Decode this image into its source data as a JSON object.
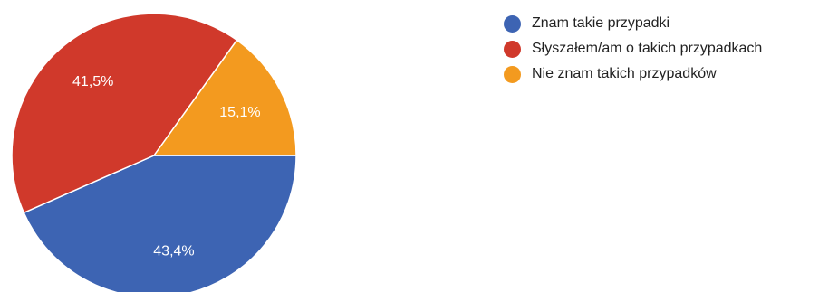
{
  "chart_data": {
    "type": "pie",
    "categories": [
      "Znam takie przypadki",
      "Słyszałem/am o takich przypadkach",
      "Nie znam takich przypadków"
    ],
    "values": [
      43.4,
      41.5,
      15.1
    ],
    "data_labels": [
      "43,4%",
      "41,5%",
      "15,1%"
    ],
    "colors": [
      "#3d64b3",
      "#d0392b",
      "#f39a1f"
    ],
    "legend_position": "right"
  }
}
